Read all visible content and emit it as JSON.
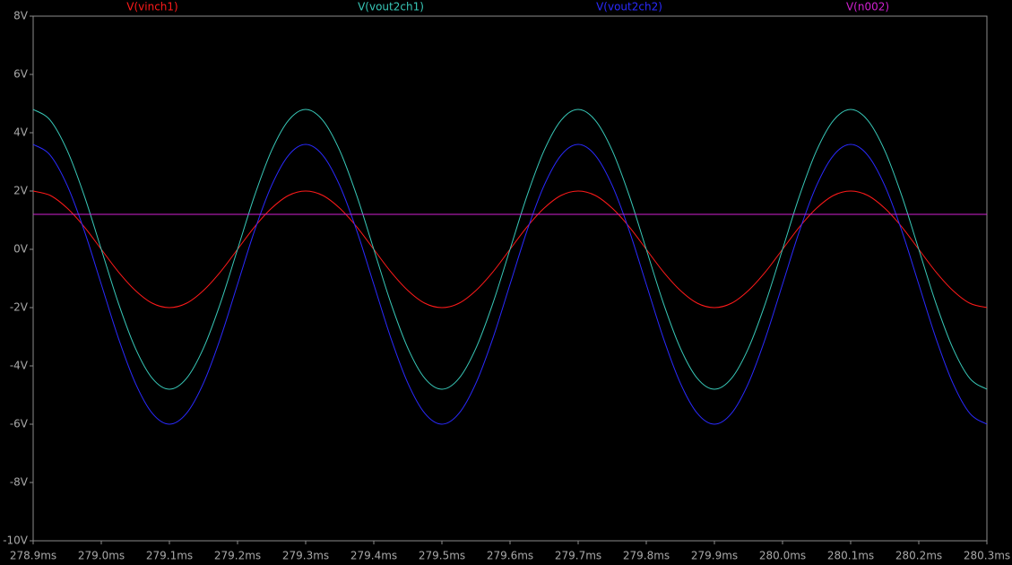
{
  "chart_data": {
    "type": "line",
    "x": [
      278.9,
      278.925,
      278.95,
      278.975,
      279.0,
      279.025,
      279.05,
      279.075,
      279.1,
      279.125,
      279.15,
      279.175,
      279.2,
      279.225,
      279.25,
      279.275,
      279.3,
      279.325,
      279.35,
      279.375,
      279.4,
      279.425,
      279.45,
      279.475,
      279.5,
      279.525,
      279.55,
      279.575,
      279.6,
      279.625,
      279.65,
      279.675,
      279.7,
      279.725,
      279.75,
      279.775,
      279.8,
      279.825,
      279.85,
      279.875,
      279.9,
      279.925,
      279.95,
      279.975,
      280.0,
      280.025,
      280.05,
      280.075,
      280.1,
      280.125,
      280.15,
      280.175,
      280.2,
      280.225,
      280.25,
      280.275,
      280.3
    ],
    "series": [
      {
        "name": "V(vinch1)",
        "color": "#ff1a1a",
        "values": [
          2,
          1.85,
          1.41,
          0.77,
          0,
          -0.77,
          -1.41,
          -1.85,
          -2,
          -1.85,
          -1.41,
          -0.77,
          0,
          0.77,
          1.41,
          1.85,
          2,
          1.85,
          1.41,
          0.77,
          0,
          -0.77,
          -1.41,
          -1.85,
          -2,
          -1.85,
          -1.41,
          -0.77,
          0,
          0.77,
          1.41,
          1.85,
          2,
          1.85,
          1.41,
          0.77,
          0,
          -0.77,
          -1.41,
          -1.85,
          -2,
          -1.85,
          -1.41,
          -0.77,
          0,
          0.77,
          1.41,
          1.85,
          2,
          1.85,
          1.41,
          0.77,
          0,
          -0.77,
          -1.41,
          -1.85,
          -2
        ]
      },
      {
        "name": "V(vout2ch1)",
        "color": "#38c8b8",
        "values": [
          4.8,
          4.43,
          3.39,
          1.84,
          0,
          -1.84,
          -3.39,
          -4.43,
          -4.8,
          -4.43,
          -3.39,
          -1.84,
          0,
          1.84,
          3.39,
          4.43,
          4.8,
          4.43,
          3.39,
          1.84,
          0,
          -1.84,
          -3.39,
          -4.43,
          -4.8,
          -4.43,
          -3.39,
          -1.84,
          0,
          1.84,
          3.39,
          4.43,
          4.8,
          4.43,
          3.39,
          1.84,
          0,
          -1.84,
          -3.39,
          -4.43,
          -4.8,
          -4.43,
          -3.39,
          -1.84,
          0,
          1.84,
          3.39,
          4.43,
          4.8,
          4.43,
          3.39,
          1.84,
          0,
          -1.84,
          -3.39,
          -4.43,
          -4.8
        ]
      },
      {
        "name": "V(vout2ch2)",
        "color": "#2a2aff",
        "values": [
          3.6,
          3.23,
          2.19,
          0.64,
          -1.2,
          -3.04,
          -4.59,
          -5.63,
          -6.0,
          -5.63,
          -4.59,
          -3.04,
          -1.2,
          0.64,
          2.19,
          3.23,
          3.6,
          3.23,
          2.19,
          0.64,
          -1.2,
          -3.04,
          -4.59,
          -5.63,
          -6.0,
          -5.63,
          -4.59,
          -3.04,
          -1.2,
          0.64,
          2.19,
          3.23,
          3.6,
          3.23,
          2.19,
          0.64,
          -1.2,
          -3.04,
          -4.59,
          -5.63,
          -6.0,
          -5.63,
          -4.59,
          -3.04,
          -1.2,
          0.64,
          2.19,
          3.23,
          3.6,
          3.23,
          2.19,
          0.64,
          -1.2,
          -3.04,
          -4.59,
          -5.63,
          -6.0
        ]
      },
      {
        "name": "V(n002)",
        "color": "#d020d0",
        "values": [
          1.2,
          1.2,
          1.2,
          1.2,
          1.2,
          1.2,
          1.2,
          1.2,
          1.2,
          1.2,
          1.2,
          1.2,
          1.2,
          1.2,
          1.2,
          1.2,
          1.2,
          1.2,
          1.2,
          1.2,
          1.2,
          1.2,
          1.2,
          1.2,
          1.2,
          1.2,
          1.2,
          1.2,
          1.2,
          1.2,
          1.2,
          1.2,
          1.2,
          1.2,
          1.2,
          1.2,
          1.2,
          1.2,
          1.2,
          1.2,
          1.2,
          1.2,
          1.2,
          1.2,
          1.2,
          1.2,
          1.2,
          1.2,
          1.2,
          1.2,
          1.2,
          1.2,
          1.2,
          1.2,
          1.2,
          1.2,
          1.2
        ]
      }
    ],
    "xlim": [
      278.9,
      280.3
    ],
    "xticks": [
      {
        "value": 278.9,
        "label": "278.9ms"
      },
      {
        "value": 279.0,
        "label": "279.0ms"
      },
      {
        "value": 279.1,
        "label": "279.1ms"
      },
      {
        "value": 279.2,
        "label": "279.2ms"
      },
      {
        "value": 279.3,
        "label": "279.3ms"
      },
      {
        "value": 279.4,
        "label": "279.4ms"
      },
      {
        "value": 279.5,
        "label": "279.5ms"
      },
      {
        "value": 279.6,
        "label": "279.6ms"
      },
      {
        "value": 279.7,
        "label": "279.7ms"
      },
      {
        "value": 279.8,
        "label": "279.8ms"
      },
      {
        "value": 279.9,
        "label": "279.9ms"
      },
      {
        "value": 280.0,
        "label": "280.0ms"
      },
      {
        "value": 280.1,
        "label": "280.1ms"
      },
      {
        "value": 280.2,
        "label": "280.2ms"
      },
      {
        "value": 280.3,
        "label": "280.3ms"
      }
    ],
    "ylim": [
      -10,
      8
    ],
    "yticks": [
      {
        "value": 8,
        "label": "8V"
      },
      {
        "value": 6,
        "label": "6V"
      },
      {
        "value": 4,
        "label": "4V"
      },
      {
        "value": 2,
        "label": "2V"
      },
      {
        "value": 0,
        "label": "0V"
      },
      {
        "value": -2,
        "label": "-2V"
      },
      {
        "value": -4,
        "label": "-4V"
      },
      {
        "value": -6,
        "label": "-6V"
      },
      {
        "value": -8,
        "label": "-8V"
      },
      {
        "value": -10,
        "label": "-10V"
      }
    ],
    "grid": false
  }
}
